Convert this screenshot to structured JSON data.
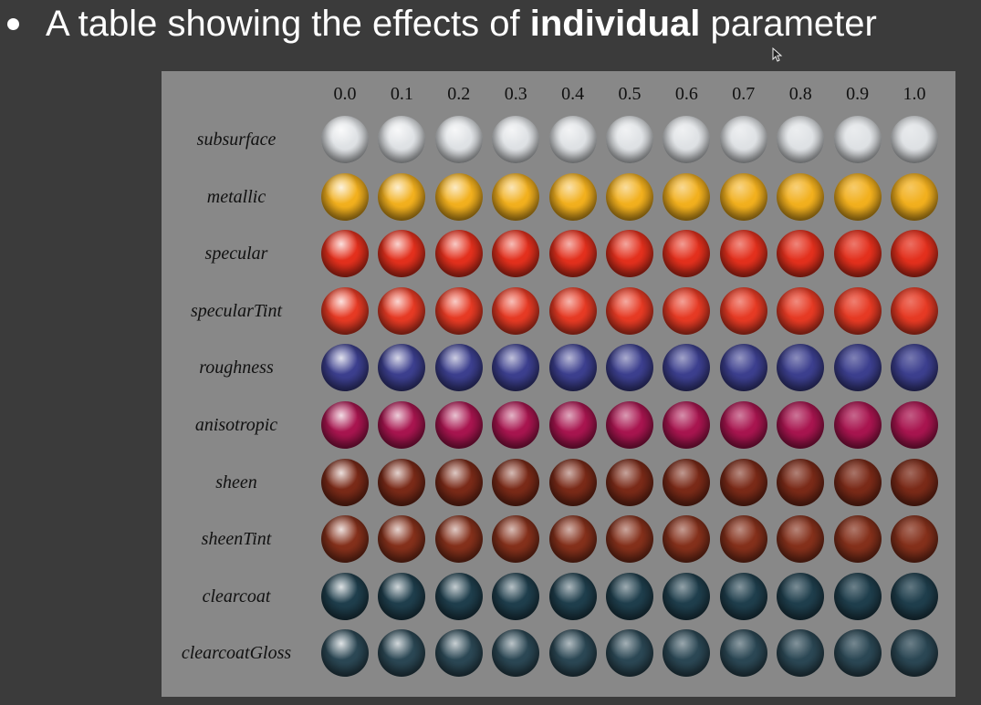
{
  "slide": {
    "bullet_prefix": "A table showing the effects of ",
    "bullet_bold": "individual",
    "bullet_suffix": " parameter",
    "cursor_icon": "mouse-pointer-icon"
  },
  "table": {
    "columns": [
      "0.0",
      "0.1",
      "0.2",
      "0.3",
      "0.4",
      "0.5",
      "0.6",
      "0.7",
      "0.8",
      "0.9",
      "1.0"
    ],
    "rows": [
      {
        "label": "subsurface",
        "color": "#dfe2e5"
      },
      {
        "label": "metallic",
        "color": "#f2b01e"
      },
      {
        "label": "specular",
        "color": "#e3301d"
      },
      {
        "label": "specularTint",
        "color": "#e63a24"
      },
      {
        "label": "roughness",
        "color": "#3c3f8e"
      },
      {
        "label": "anisotropic",
        "color": "#a8154f"
      },
      {
        "label": "sheen",
        "color": "#7a2a18"
      },
      {
        "label": "sheenTint",
        "color": "#84301b"
      },
      {
        "label": "clearcoat",
        "color": "#1f3e4c"
      },
      {
        "label": "clearcoatGloss",
        "color": "#2b4754"
      }
    ]
  }
}
